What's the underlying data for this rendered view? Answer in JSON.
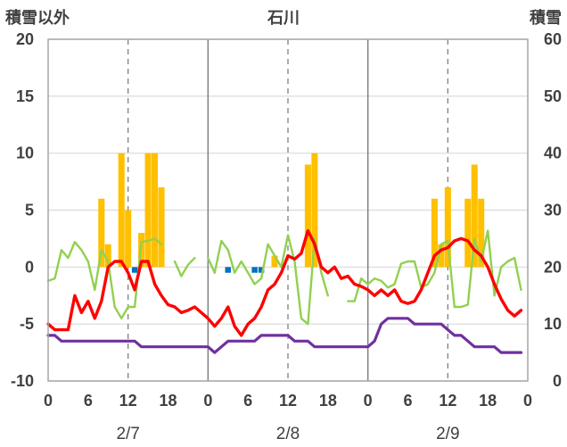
{
  "chart_data": {
    "type": "bar+line",
    "title": "石川",
    "left_axis_title": "積雪以外",
    "right_axis_title": "積雪",
    "left_ylim": [
      -10,
      20
    ],
    "left_ticks": [
      -10,
      -5,
      0,
      5,
      10,
      15,
      20
    ],
    "right_ylim": [
      0,
      60
    ],
    "right_ticks": [
      0,
      10,
      20,
      30,
      40,
      50,
      60
    ],
    "xlim": [
      0,
      72
    ],
    "x_tick_labels": [
      "0",
      "6",
      "12",
      "18",
      "0",
      "6",
      "12",
      "18",
      "0",
      "6",
      "12",
      "18",
      "0"
    ],
    "x_tick_hours": [
      0,
      6,
      12,
      18,
      24,
      30,
      36,
      42,
      48,
      54,
      60,
      66,
      72
    ],
    "day_labels": [
      {
        "label": "2/7",
        "hour": 12
      },
      {
        "label": "2/8",
        "hour": 36
      },
      {
        "label": "2/9",
        "hour": 60
      }
    ],
    "grid": "horizontal gridlines every 5; dashed verticals at 12:00, solid verticals at day boundaries",
    "colors": {
      "bars_orange": "#FFC000",
      "bars_blue": "#0070C0",
      "red_line": "#FF0000",
      "green_line": "#92D050",
      "purple_line": "#7030A0"
    },
    "orange_bars": {
      "x": [
        8,
        9,
        11,
        12,
        14,
        15,
        16,
        17,
        34,
        39,
        40,
        58,
        59,
        60,
        63,
        64,
        65
      ],
      "values": [
        6,
        2,
        10,
        5,
        3,
        10,
        10,
        7,
        1,
        9,
        10,
        6,
        2,
        7,
        6,
        9,
        6
      ]
    },
    "blue_bars": {
      "x": [
        13,
        27,
        31,
        32
      ],
      "values": [
        -0.5,
        -0.5,
        -0.5,
        -0.5
      ]
    },
    "red_line": {
      "x": [
        0,
        1,
        2,
        3,
        4,
        5,
        6,
        7,
        8,
        9,
        10,
        11,
        12,
        13,
        14,
        15,
        16,
        17,
        18,
        19,
        20,
        21,
        22,
        23,
        24,
        25,
        26,
        27,
        28,
        29,
        30,
        31,
        32,
        33,
        34,
        35,
        36,
        37,
        38,
        39,
        40,
        41,
        42,
        43,
        44,
        45,
        46,
        47,
        48,
        49,
        50,
        51,
        52,
        53,
        54,
        55,
        56,
        57,
        58,
        59,
        60,
        61,
        62,
        63,
        64,
        65,
        66,
        67,
        68,
        69,
        70,
        71
      ],
      "values": [
        -5,
        -5.5,
        -5.5,
        -5.5,
        -2.5,
        -4,
        -3,
        -4.5,
        -3,
        0,
        0.5,
        0.5,
        -0.5,
        -2,
        0.5,
        0.5,
        -1.5,
        -2.5,
        -3.3,
        -3.5,
        -4,
        -3.8,
        -3.5,
        -4,
        -4.5,
        -5.2,
        -4.5,
        -3.5,
        -5.2,
        -6,
        -5,
        -4.5,
        -3.5,
        -2,
        -1.5,
        -0.5,
        1,
        0.7,
        1.2,
        3.2,
        2,
        0,
        -0.5,
        0,
        -1,
        -0.8,
        -1.5,
        -1.7,
        -2,
        -2.5,
        -2,
        -2.5,
        -2,
        -3,
        -3.2,
        -3,
        -2,
        -0.5,
        1,
        1.5,
        1.7,
        2.3,
        2.5,
        2.3,
        1.5,
        1,
        0,
        -1.5,
        -2.8,
        -3.8,
        -4.3,
        -3.8
      ]
    },
    "green_segments": [
      {
        "x": [
          0,
          1,
          2,
          3,
          4,
          5,
          6,
          7,
          8,
          9,
          10,
          11,
          12,
          13,
          14,
          15,
          16,
          17
        ],
        "values": [
          -1.2,
          -1,
          1.5,
          0.8,
          2.2,
          1.5,
          0.5,
          -2,
          1.5,
          0.5,
          -3.5,
          -4.5,
          -3.5,
          -3.5,
          2.2,
          2.3,
          2.5,
          2
        ]
      },
      {
        "x": [
          19,
          20,
          21,
          22
        ],
        "values": [
          0.5,
          -0.8,
          0.2,
          0.8
        ]
      },
      {
        "x": [
          24,
          25,
          26,
          27,
          28,
          29,
          30,
          31,
          32,
          33,
          34,
          35,
          36,
          37,
          38,
          39,
          40,
          41,
          42
        ],
        "values": [
          0.8,
          -0.5,
          2.3,
          1.5,
          -0.5,
          0.5,
          -0.5,
          -1.5,
          -1,
          2,
          1,
          0,
          2.8,
          0.5,
          -4.5,
          -5,
          2.5,
          -0.5,
          -2.5
        ]
      },
      {
        "x": [
          45,
          46,
          47,
          48,
          49,
          50,
          51,
          52,
          53,
          54,
          55,
          56,
          57,
          58,
          59,
          60,
          61,
          62,
          63,
          64,
          65,
          66,
          67,
          68,
          69,
          70,
          71
        ],
        "values": [
          -3,
          -3,
          -1,
          -1.5,
          -1,
          -1.2,
          -1.8,
          -1.5,
          0.3,
          0.5,
          0.5,
          -1.8,
          -1.5,
          -0.5,
          2,
          2.3,
          -3.5,
          -3.5,
          -3.3,
          2.5,
          0.5,
          3.2,
          -2.5,
          0,
          0.5,
          0.8,
          -2
        ]
      }
    ],
    "purple_line": {
      "x": [
        0,
        1,
        2,
        3,
        4,
        5,
        6,
        7,
        8,
        9,
        10,
        11,
        12,
        13,
        14,
        15,
        16,
        17,
        18,
        19,
        20,
        21,
        22,
        23,
        24,
        25,
        26,
        27,
        28,
        29,
        30,
        31,
        32,
        33,
        34,
        35,
        36,
        37,
        38,
        39,
        40,
        41,
        42,
        43,
        44,
        45,
        46,
        47,
        48,
        49,
        50,
        51,
        52,
        53,
        54,
        55,
        56,
        57,
        58,
        59,
        60,
        61,
        62,
        63,
        64,
        65,
        66,
        67,
        68,
        69,
        70,
        71
      ],
      "values": [
        8,
        8,
        7,
        7,
        7,
        7,
        7,
        7,
        7,
        7,
        7,
        7,
        7,
        7,
        6,
        6,
        6,
        6,
        6,
        6,
        6,
        6,
        6,
        6,
        6,
        5,
        6,
        7,
        7,
        7,
        7,
        7,
        8,
        8,
        8,
        8,
        8,
        7,
        7,
        7,
        6,
        6,
        6,
        6,
        6,
        6,
        6,
        6,
        6,
        7,
        10,
        11,
        11,
        11,
        11,
        10,
        10,
        10,
        10,
        10,
        9,
        8,
        8,
        7,
        6,
        6,
        6,
        6,
        5,
        5,
        5,
        5
      ]
    }
  }
}
